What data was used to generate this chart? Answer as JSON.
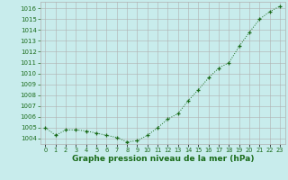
{
  "x": [
    0,
    1,
    2,
    3,
    4,
    5,
    6,
    7,
    8,
    9,
    10,
    11,
    12,
    13,
    14,
    15,
    16,
    17,
    18,
    19,
    20,
    21,
    22,
    23
  ],
  "y": [
    1005.0,
    1004.3,
    1004.8,
    1004.8,
    1004.7,
    1004.5,
    1004.3,
    1004.1,
    1003.7,
    1003.8,
    1004.3,
    1005.0,
    1005.8,
    1006.3,
    1007.5,
    1008.5,
    1009.6,
    1010.5,
    1011.0,
    1012.5,
    1013.8,
    1015.0,
    1015.7,
    1016.2
  ],
  "line_color": "#1a6b1a",
  "marker": "+",
  "background_color": "#c8ecec",
  "grid_color": "#b0b0b0",
  "ylabel_ticks": [
    1004,
    1005,
    1006,
    1007,
    1008,
    1009,
    1010,
    1011,
    1012,
    1013,
    1014,
    1015,
    1016
  ],
  "xlabel": "Graphe pression niveau de la mer (hPa)",
  "ylim": [
    1003.5,
    1016.6
  ],
  "xlim": [
    -0.5,
    23.5
  ],
  "tick_color": "#1a6b1a",
  "label_color": "#1a6b1a",
  "xlabel_fontsize": 6.5,
  "ytick_fontsize": 5.0,
  "xtick_fontsize": 4.8
}
